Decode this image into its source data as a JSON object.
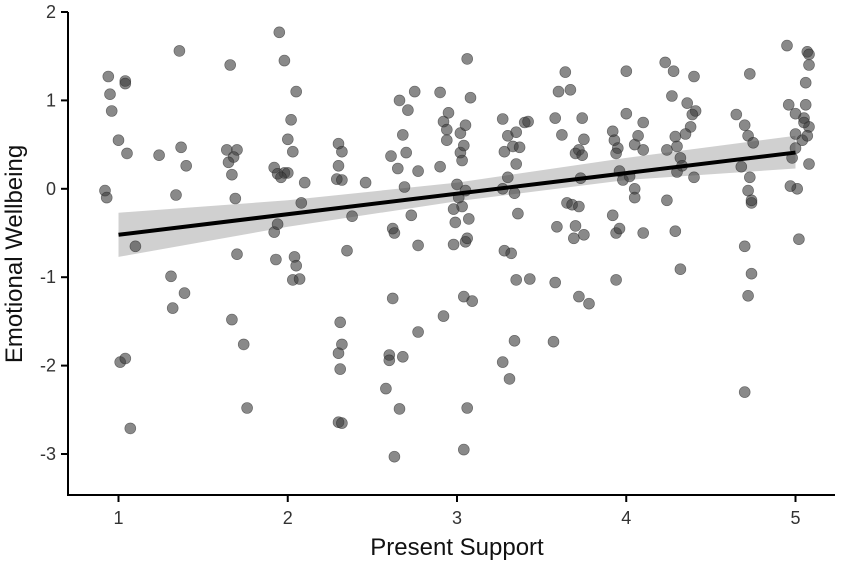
{
  "chart_data": {
    "type": "scatter",
    "xlabel": "Present Support",
    "ylabel": "Emotional Wellbeing",
    "xlim": [
      0.7,
      5.3
    ],
    "ylim": [
      -3.5,
      2.0
    ],
    "x_ticks": [
      1,
      2,
      3,
      4,
      5
    ],
    "x_tick_labels": [
      "1",
      "2",
      "3",
      "4",
      "5"
    ],
    "y_ticks": [
      2,
      1,
      0,
      -1,
      -2,
      -3
    ],
    "y_tick_labels": [
      "2",
      "1",
      "0",
      "-1",
      "-2",
      "-3"
    ],
    "grid": false,
    "point_color": "#3a3a3a",
    "fit_line_color": "#000000",
    "ribbon_color": "#c8c8c8",
    "fit_line": {
      "x": [
        1.0,
        5.0
      ],
      "y": [
        -0.52,
        0.41
      ]
    },
    "confidence_band": {
      "x": [
        1.0,
        2.0,
        3.0,
        4.0,
        5.0
      ],
      "lower": [
        -0.77,
        -0.43,
        -0.14,
        0.1,
        0.23
      ],
      "upper": [
        -0.27,
        -0.13,
        0.07,
        0.35,
        0.6
      ]
    },
    "points": [
      [
        0.94,
        1.27
      ],
      [
        0.95,
        1.07
      ],
      [
        0.96,
        0.88
      ],
      [
        1.04,
        1.22
      ],
      [
        1.04,
        1.19
      ],
      [
        1.0,
        0.55
      ],
      [
        1.05,
        0.4
      ],
      [
        0.92,
        -0.02
      ],
      [
        0.93,
        -0.1
      ],
      [
        1.1,
        -0.65
      ],
      [
        1.01,
        -1.96
      ],
      [
        1.04,
        -1.92
      ],
      [
        1.07,
        -2.71
      ],
      [
        1.36,
        1.56
      ],
      [
        1.24,
        0.38
      ],
      [
        1.37,
        0.47
      ],
      [
        1.4,
        0.26
      ],
      [
        1.34,
        -0.07
      ],
      [
        1.31,
        -0.99
      ],
      [
        1.32,
        -1.35
      ],
      [
        1.39,
        -1.18
      ],
      [
        1.66,
        1.4
      ],
      [
        1.64,
        0.44
      ],
      [
        1.7,
        0.44
      ],
      [
        1.68,
        0.36
      ],
      [
        1.65,
        0.3
      ],
      [
        1.67,
        0.16
      ],
      [
        1.69,
        -0.11
      ],
      [
        1.7,
        -0.74
      ],
      [
        1.67,
        -1.48
      ],
      [
        1.74,
        -1.76
      ],
      [
        1.76,
        -2.48
      ],
      [
        1.95,
        1.77
      ],
      [
        1.98,
        1.45
      ],
      [
        2.05,
        1.1
      ],
      [
        2.02,
        0.78
      ],
      [
        2.0,
        0.56
      ],
      [
        2.03,
        0.42
      ],
      [
        1.92,
        0.24
      ],
      [
        1.94,
        0.17
      ],
      [
        1.98,
        0.18
      ],
      [
        2.0,
        0.18
      ],
      [
        1.96,
        0.13
      ],
      [
        2.1,
        0.07
      ],
      [
        2.08,
        -0.16
      ],
      [
        1.92,
        -0.49
      ],
      [
        1.94,
        -0.4
      ],
      [
        1.93,
        -0.8
      ],
      [
        2.04,
        -0.77
      ],
      [
        2.05,
        -0.87
      ],
      [
        2.03,
        -1.03
      ],
      [
        2.07,
        -1.02
      ],
      [
        2.3,
        0.51
      ],
      [
        2.32,
        0.42
      ],
      [
        2.3,
        0.26
      ],
      [
        2.29,
        0.11
      ],
      [
        2.32,
        0.1
      ],
      [
        2.46,
        0.07
      ],
      [
        2.38,
        -0.31
      ],
      [
        2.35,
        -0.7
      ],
      [
        2.31,
        -1.51
      ],
      [
        2.32,
        -1.76
      ],
      [
        2.3,
        -1.86
      ],
      [
        2.31,
        -2.04
      ],
      [
        2.3,
        -2.64
      ],
      [
        2.32,
        -2.65
      ],
      [
        2.66,
        1.0
      ],
      [
        2.71,
        0.89
      ],
      [
        2.75,
        1.1
      ],
      [
        2.68,
        0.61
      ],
      [
        2.7,
        0.41
      ],
      [
        2.61,
        0.37
      ],
      [
        2.65,
        0.23
      ],
      [
        2.77,
        0.2
      ],
      [
        2.69,
        0.02
      ],
      [
        2.73,
        -0.3
      ],
      [
        2.62,
        -0.45
      ],
      [
        2.63,
        -0.5
      ],
      [
        2.77,
        -0.64
      ],
      [
        2.62,
        -1.24
      ],
      [
        2.77,
        -1.62
      ],
      [
        2.6,
        -1.88
      ],
      [
        2.68,
        -1.9
      ],
      [
        2.6,
        -1.94
      ],
      [
        2.58,
        -2.26
      ],
      [
        2.66,
        -2.49
      ],
      [
        2.63,
        -3.03
      ],
      [
        2.9,
        1.09
      ],
      [
        2.92,
        0.76
      ],
      [
        2.95,
        0.86
      ],
      [
        2.94,
        0.67
      ],
      [
        2.94,
        0.55
      ],
      [
        3.02,
        0.63
      ],
      [
        3.02,
        0.41
      ],
      [
        3.04,
        0.49
      ],
      [
        3.06,
        1.47
      ],
      [
        3.08,
        1.03
      ],
      [
        3.05,
        0.72
      ],
      [
        3.03,
        0.32
      ],
      [
        2.9,
        0.25
      ],
      [
        3.0,
        0.05
      ],
      [
        3.05,
        -0.02
      ],
      [
        3.03,
        -0.2
      ],
      [
        3.01,
        -0.1
      ],
      [
        2.98,
        -0.23
      ],
      [
        2.99,
        -0.38
      ],
      [
        3.07,
        -0.34
      ],
      [
        3.05,
        -0.6
      ],
      [
        3.06,
        -0.56
      ],
      [
        2.98,
        -0.63
      ],
      [
        3.04,
        -1.22
      ],
      [
        3.09,
        -1.27
      ],
      [
        2.92,
        -1.44
      ],
      [
        3.06,
        -2.48
      ],
      [
        3.04,
        -2.95
      ],
      [
        3.27,
        0.79
      ],
      [
        3.3,
        0.6
      ],
      [
        3.35,
        0.64
      ],
      [
        3.33,
        0.48
      ],
      [
        3.28,
        0.42
      ],
      [
        3.37,
        0.47
      ],
      [
        3.4,
        0.75
      ],
      [
        3.42,
        0.76
      ],
      [
        3.35,
        0.28
      ],
      [
        3.3,
        0.13
      ],
      [
        3.27,
        0.0
      ],
      [
        3.34,
        -0.05
      ],
      [
        3.36,
        -0.28
      ],
      [
        3.28,
        -0.7
      ],
      [
        3.32,
        -0.73
      ],
      [
        3.35,
        -1.03
      ],
      [
        3.43,
        -1.02
      ],
      [
        3.34,
        -1.72
      ],
      [
        3.27,
        -1.96
      ],
      [
        3.31,
        -2.15
      ],
      [
        3.6,
        1.1
      ],
      [
        3.64,
        1.32
      ],
      [
        3.67,
        1.12
      ],
      [
        3.58,
        0.8
      ],
      [
        3.62,
        0.61
      ],
      [
        3.7,
        0.4
      ],
      [
        3.72,
        0.44
      ],
      [
        3.74,
        0.38
      ],
      [
        3.75,
        0.56
      ],
      [
        3.74,
        0.8
      ],
      [
        3.73,
        0.12
      ],
      [
        3.65,
        -0.16
      ],
      [
        3.68,
        -0.18
      ],
      [
        3.72,
        -0.2
      ],
      [
        3.59,
        -0.43
      ],
      [
        3.7,
        -0.42
      ],
      [
        3.69,
        -0.56
      ],
      [
        3.75,
        -0.52
      ],
      [
        3.58,
        -1.06
      ],
      [
        3.72,
        -1.22
      ],
      [
        3.78,
        -1.3
      ],
      [
        3.57,
        -1.73
      ],
      [
        3.92,
        0.65
      ],
      [
        3.93,
        0.55
      ],
      [
        3.95,
        0.46
      ],
      [
        3.94,
        0.4
      ],
      [
        3.96,
        0.2
      ],
      [
        3.98,
        0.1
      ],
      [
        3.92,
        -0.3
      ],
      [
        3.94,
        -0.5
      ],
      [
        3.96,
        -0.45
      ],
      [
        3.94,
        -1.03
      ],
      [
        4.0,
        1.33
      ],
      [
        4.0,
        0.85
      ],
      [
        4.05,
        0.5
      ],
      [
        4.07,
        0.6
      ],
      [
        4.1,
        0.75
      ],
      [
        4.1,
        0.44
      ],
      [
        4.02,
        0.14
      ],
      [
        4.05,
        0.0
      ],
      [
        4.1,
        -0.5
      ],
      [
        4.05,
        -0.1
      ],
      [
        4.23,
        1.43
      ],
      [
        4.28,
        1.33
      ],
      [
        4.27,
        1.05
      ],
      [
        4.36,
        0.97
      ],
      [
        4.4,
        1.27
      ],
      [
        4.41,
        0.88
      ],
      [
        4.39,
        0.84
      ],
      [
        4.38,
        0.7
      ],
      [
        4.35,
        0.62
      ],
      [
        4.3,
        0.48
      ],
      [
        4.29,
        0.59
      ],
      [
        4.32,
        0.35
      ],
      [
        4.33,
        0.26
      ],
      [
        4.24,
        0.44
      ],
      [
        4.3,
        0.19
      ],
      [
        4.4,
        0.13
      ],
      [
        4.24,
        -0.13
      ],
      [
        4.29,
        -0.48
      ],
      [
        4.32,
        -0.91
      ],
      [
        4.65,
        0.84
      ],
      [
        4.7,
        0.72
      ],
      [
        4.72,
        0.6
      ],
      [
        4.75,
        0.52
      ],
      [
        4.73,
        1.3
      ],
      [
        4.68,
        0.25
      ],
      [
        4.73,
        0.13
      ],
      [
        4.72,
        -0.02
      ],
      [
        4.74,
        -0.16
      ],
      [
        4.74,
        -0.13
      ],
      [
        4.7,
        -0.65
      ],
      [
        4.74,
        -0.96
      ],
      [
        4.72,
        -1.21
      ],
      [
        4.7,
        -2.3
      ],
      [
        4.95,
        1.62
      ],
      [
        4.96,
        0.95
      ],
      [
        5.0,
        0.85
      ],
      [
        5.05,
        0.8
      ],
      [
        5.06,
        0.95
      ],
      [
        5.08,
        0.7
      ],
      [
        5.04,
        0.55
      ],
      [
        5.07,
        0.6
      ],
      [
        5.08,
        0.28
      ],
      [
        5.0,
        0.46
      ],
      [
        4.98,
        0.35
      ],
      [
        5.01,
        0.0
      ],
      [
        4.97,
        0.03
      ],
      [
        5.07,
        1.55
      ],
      [
        5.08,
        1.52
      ],
      [
        5.08,
        1.4
      ],
      [
        5.06,
        1.2
      ],
      [
        5.02,
        -0.57
      ],
      [
        5.05,
        0.75
      ],
      [
        5.0,
        0.62
      ]
    ]
  }
}
